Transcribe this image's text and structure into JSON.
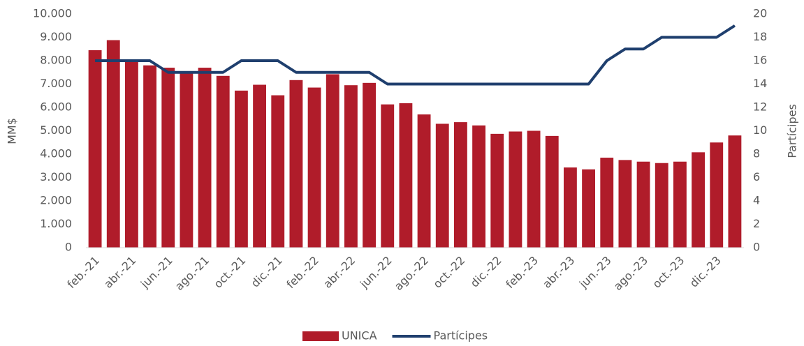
{
  "chart_data": {
    "type": "bar-line",
    "categories": [
      "feb.-21",
      null,
      "abr.-21",
      null,
      "jun.-21",
      null,
      "ago.-21",
      null,
      "oct.-21",
      null,
      "dic.-21",
      null,
      "feb.-22",
      null,
      "abr.-22",
      null,
      "jun.-22",
      null,
      "ago.-22",
      null,
      "oct.-22",
      null,
      "dic.-22",
      null,
      "feb.-23",
      null,
      "abr.-23",
      null,
      "jun.-23",
      null,
      "ago.-23",
      null,
      "oct.-23",
      null,
      "dic.-23",
      null
    ],
    "series": [
      {
        "name": "UNICA",
        "color": "#b01c2a",
        "type": "bar",
        "values": [
          8450,
          8880,
          8000,
          7800,
          7700,
          7500,
          7700,
          7350,
          6720,
          6970,
          6520,
          7170,
          6850,
          7420,
          6950,
          7050,
          6130,
          6180,
          5700,
          5300,
          5370,
          5230,
          4870,
          4970,
          5000,
          4780,
          3430,
          3350,
          3850,
          3750,
          3680,
          3620,
          3680,
          4080,
          4500,
          4800
        ]
      },
      {
        "name": "Partícipes",
        "color": "#1f3f6e",
        "type": "line",
        "axis": "y2",
        "values": [
          16,
          16,
          16,
          16,
          15,
          15,
          15,
          15,
          16,
          16,
          16,
          15,
          15,
          15,
          15,
          15,
          14,
          14,
          14,
          14,
          14,
          14,
          14,
          14,
          14,
          14,
          14,
          14,
          16,
          17,
          17,
          18,
          18,
          18,
          18,
          19
        ]
      }
    ],
    "ylabel": "MM$",
    "y2label": "Partícipes",
    "ylim": [
      0,
      10000
    ],
    "yticks": [
      0,
      {
        "value": 1000,
        "label": "1.000"
      },
      {
        "value": 2000,
        "label": "2.000"
      },
      {
        "value": 3000,
        "label": "3.000"
      },
      {
        "value": 4000,
        "label": "4.000"
      },
      {
        "value": 5000,
        "label": "5.000"
      },
      {
        "value": 6000,
        "label": "6.000"
      },
      {
        "value": 7000,
        "label": "7.000"
      },
      {
        "value": 8000,
        "label": "8.000"
      },
      {
        "value": 9000,
        "label": "9.000"
      },
      {
        "value": 10000,
        "label": "10.000"
      }
    ],
    "y2lim": [
      0,
      20
    ],
    "y2ticks": [
      0,
      2,
      4,
      6,
      8,
      10,
      12,
      14,
      16,
      18,
      20
    ],
    "legend": "bottom"
  }
}
